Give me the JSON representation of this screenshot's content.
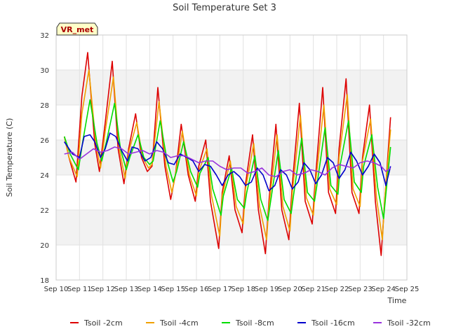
{
  "chart_data": {
    "type": "line",
    "title": "Soil Temperature Set 3",
    "xlabel": "Time",
    "ylabel": "Soil Temperature (C)",
    "site_label": "VR_met",
    "ylim": [
      18,
      32
    ],
    "xlim": [
      10,
      25
    ],
    "y_ticks": [
      "18",
      "20",
      "22",
      "24",
      "26",
      "28",
      "30",
      "32"
    ],
    "x_ticks": [
      "Sep 10",
      "Sep 11",
      "Sep 12",
      "Sep 13",
      "Sep 14",
      "Sep 15",
      "Sep 16",
      "Sep 17",
      "Sep 18",
      "Sep 19",
      "Sep 20",
      "Sep 21",
      "Sep 22",
      "Sep 23",
      "Sep 24",
      "Sep 25"
    ],
    "grid": true,
    "legend_position": "bottom",
    "series": [
      {
        "name": "Tsoil -2cm",
        "color": "#dd0000",
        "x": [
          10.35,
          10.55,
          10.85,
          11.1,
          11.35,
          11.65,
          11.85,
          12.1,
          12.4,
          12.65,
          12.9,
          13.1,
          13.4,
          13.65,
          13.9,
          14.1,
          14.35,
          14.65,
          14.9,
          15.1,
          15.35,
          15.65,
          15.95,
          16.1,
          16.4,
          16.6,
          16.95,
          17.1,
          17.4,
          17.65,
          17.95,
          18.1,
          18.4,
          18.65,
          18.95,
          19.1,
          19.4,
          19.65,
          19.95,
          20.1,
          20.4,
          20.65,
          20.95,
          21.1,
          21.4,
          21.65,
          21.95,
          22.1,
          22.4,
          22.65,
          22.95,
          23.1,
          23.4,
          23.65,
          23.9,
          24.05,
          24.3
        ],
        "y": [
          26.2,
          25.0,
          23.6,
          28.5,
          31.0,
          25.8,
          24.2,
          27.0,
          30.5,
          25.5,
          23.5,
          25.5,
          27.5,
          25.0,
          24.2,
          24.5,
          29.0,
          24.5,
          22.6,
          24.0,
          26.9,
          24.0,
          22.5,
          24.5,
          26.0,
          22.5,
          19.8,
          23.0,
          25.1,
          22.0,
          20.7,
          23.5,
          26.3,
          22.0,
          19.5,
          22.5,
          26.9,
          22.0,
          20.3,
          23.5,
          28.1,
          22.5,
          21.2,
          24.0,
          29.0,
          23.0,
          21.8,
          25.5,
          29.5,
          23.0,
          21.8,
          25.0,
          28.0,
          22.5,
          19.4,
          22.5,
          27.3
        ]
      },
      {
        "name": "Tsoil -4cm",
        "color": "#f0a000",
        "x": [
          10.35,
          10.55,
          10.9,
          11.1,
          11.4,
          11.7,
          11.9,
          12.1,
          12.45,
          12.7,
          12.95,
          13.1,
          13.45,
          13.7,
          13.95,
          14.1,
          14.4,
          14.7,
          14.95,
          15.1,
          15.4,
          15.7,
          16.0,
          16.1,
          16.45,
          16.65,
          17.0,
          17.1,
          17.45,
          17.7,
          18.0,
          18.1,
          18.45,
          18.7,
          19.0,
          19.1,
          19.45,
          19.7,
          20.0,
          20.1,
          20.45,
          20.7,
          21.0,
          21.1,
          21.45,
          21.7,
          22.0,
          22.1,
          22.45,
          22.7,
          23.0,
          23.1,
          23.45,
          23.7,
          23.95,
          24.05,
          24.3
        ],
        "y": [
          26.2,
          25.0,
          23.9,
          27.5,
          30.0,
          25.8,
          24.4,
          26.5,
          29.6,
          25.5,
          23.8,
          25.3,
          27.0,
          25.0,
          24.4,
          24.6,
          28.2,
          24.5,
          23.0,
          24.0,
          26.5,
          24.0,
          22.8,
          24.2,
          25.5,
          22.8,
          20.5,
          22.8,
          24.8,
          22.2,
          21.2,
          23.2,
          25.8,
          22.2,
          20.3,
          22.2,
          26.3,
          22.2,
          20.8,
          23.0,
          27.4,
          22.7,
          21.7,
          23.6,
          28.0,
          23.2,
          22.3,
          25.0,
          28.6,
          23.2,
          22.2,
          24.8,
          27.2,
          22.7,
          20.3,
          22.6,
          26.6
        ]
      },
      {
        "name": "Tsoil -8cm",
        "color": "#00dd00",
        "x": [
          10.35,
          10.6,
          10.95,
          11.15,
          11.45,
          11.75,
          11.95,
          12.15,
          12.5,
          12.75,
          13.0,
          13.15,
          13.5,
          13.75,
          14.0,
          14.15,
          14.45,
          14.75,
          15.0,
          15.15,
          15.45,
          15.75,
          16.05,
          16.15,
          16.5,
          16.7,
          17.05,
          17.15,
          17.5,
          17.75,
          18.05,
          18.15,
          18.5,
          18.75,
          19.05,
          19.15,
          19.5,
          19.75,
          20.05,
          20.15,
          20.5,
          20.75,
          21.05,
          21.15,
          21.5,
          21.75,
          22.05,
          22.15,
          22.5,
          22.75,
          23.05,
          23.15,
          23.5,
          23.75,
          24.0,
          24.1,
          24.3
        ],
        "y": [
          26.2,
          25.2,
          24.3,
          26.0,
          28.3,
          25.8,
          24.8,
          25.9,
          28.1,
          25.5,
          24.3,
          25.0,
          26.3,
          25.0,
          24.6,
          24.8,
          27.1,
          24.8,
          23.6,
          24.2,
          25.9,
          24.2,
          23.3,
          24.1,
          25.0,
          23.2,
          21.7,
          22.8,
          24.4,
          22.6,
          22.1,
          23.0,
          25.1,
          22.6,
          21.4,
          22.3,
          25.4,
          22.6,
          21.8,
          22.8,
          26.1,
          23.0,
          22.5,
          23.4,
          26.7,
          23.4,
          22.9,
          24.6,
          27.1,
          23.6,
          23.0,
          24.5,
          26.3,
          23.3,
          21.5,
          22.9,
          25.6
        ]
      },
      {
        "name": "Tsoil -16cm",
        "color": "#0000cc",
        "x": [
          10.35,
          10.7,
          11.0,
          11.2,
          11.45,
          11.65,
          11.9,
          12.1,
          12.3,
          12.55,
          12.8,
          13.05,
          13.25,
          13.5,
          13.8,
          14.05,
          14.3,
          14.55,
          14.8,
          15.05,
          15.3,
          15.6,
          15.85,
          16.1,
          16.35,
          16.6,
          16.85,
          17.1,
          17.35,
          17.6,
          17.85,
          18.1,
          18.35,
          18.6,
          18.85,
          19.1,
          19.35,
          19.6,
          19.85,
          20.1,
          20.35,
          20.6,
          20.85,
          21.1,
          21.35,
          21.6,
          21.85,
          22.1,
          22.35,
          22.6,
          22.85,
          23.1,
          23.35,
          23.6,
          23.85,
          24.1,
          24.3
        ],
        "y": [
          25.9,
          25.2,
          25.0,
          26.2,
          26.3,
          25.9,
          25.0,
          25.5,
          26.4,
          26.2,
          25.4,
          24.8,
          25.6,
          25.5,
          24.8,
          25.0,
          25.9,
          25.5,
          24.7,
          24.6,
          25.2,
          25.0,
          24.8,
          24.2,
          24.6,
          24.5,
          24.0,
          23.4,
          24.0,
          24.2,
          23.9,
          23.4,
          23.6,
          24.4,
          24.0,
          23.1,
          23.4,
          24.3,
          24.0,
          23.2,
          23.6,
          24.7,
          24.3,
          23.5,
          24.0,
          25.0,
          24.7,
          23.8,
          24.3,
          25.3,
          24.8,
          24.0,
          24.5,
          25.2,
          24.7,
          23.4,
          24.5
        ]
      },
      {
        "name": "Tsoil -32cm",
        "color": "#9933dd",
        "x": [
          10.35,
          10.7,
          11.0,
          11.3,
          11.6,
          11.9,
          12.2,
          12.5,
          12.8,
          13.1,
          13.4,
          13.7,
          14.0,
          14.3,
          14.6,
          14.9,
          15.2,
          15.5,
          15.8,
          16.1,
          16.4,
          16.7,
          17.0,
          17.3,
          17.6,
          17.9,
          18.2,
          18.5,
          18.8,
          19.1,
          19.4,
          19.7,
          20.0,
          20.3,
          20.6,
          20.9,
          21.2,
          21.5,
          21.8,
          22.1,
          22.4,
          22.7,
          23.0,
          23.3,
          23.6,
          23.9,
          24.1,
          24.3
        ],
        "y": [
          25.2,
          25.3,
          24.9,
          25.2,
          25.5,
          25.3,
          25.4,
          25.6,
          25.5,
          25.2,
          25.3,
          25.4,
          25.2,
          25.4,
          25.3,
          25.0,
          25.1,
          25.1,
          24.9,
          24.7,
          24.8,
          24.8,
          24.5,
          24.3,
          24.4,
          24.4,
          24.1,
          24.2,
          24.4,
          24.0,
          23.9,
          24.2,
          24.3,
          24.0,
          24.1,
          24.3,
          24.2,
          24.0,
          24.4,
          24.6,
          24.5,
          24.4,
          24.7,
          24.8,
          24.7,
          24.5,
          24.2,
          24.4
        ]
      }
    ]
  }
}
